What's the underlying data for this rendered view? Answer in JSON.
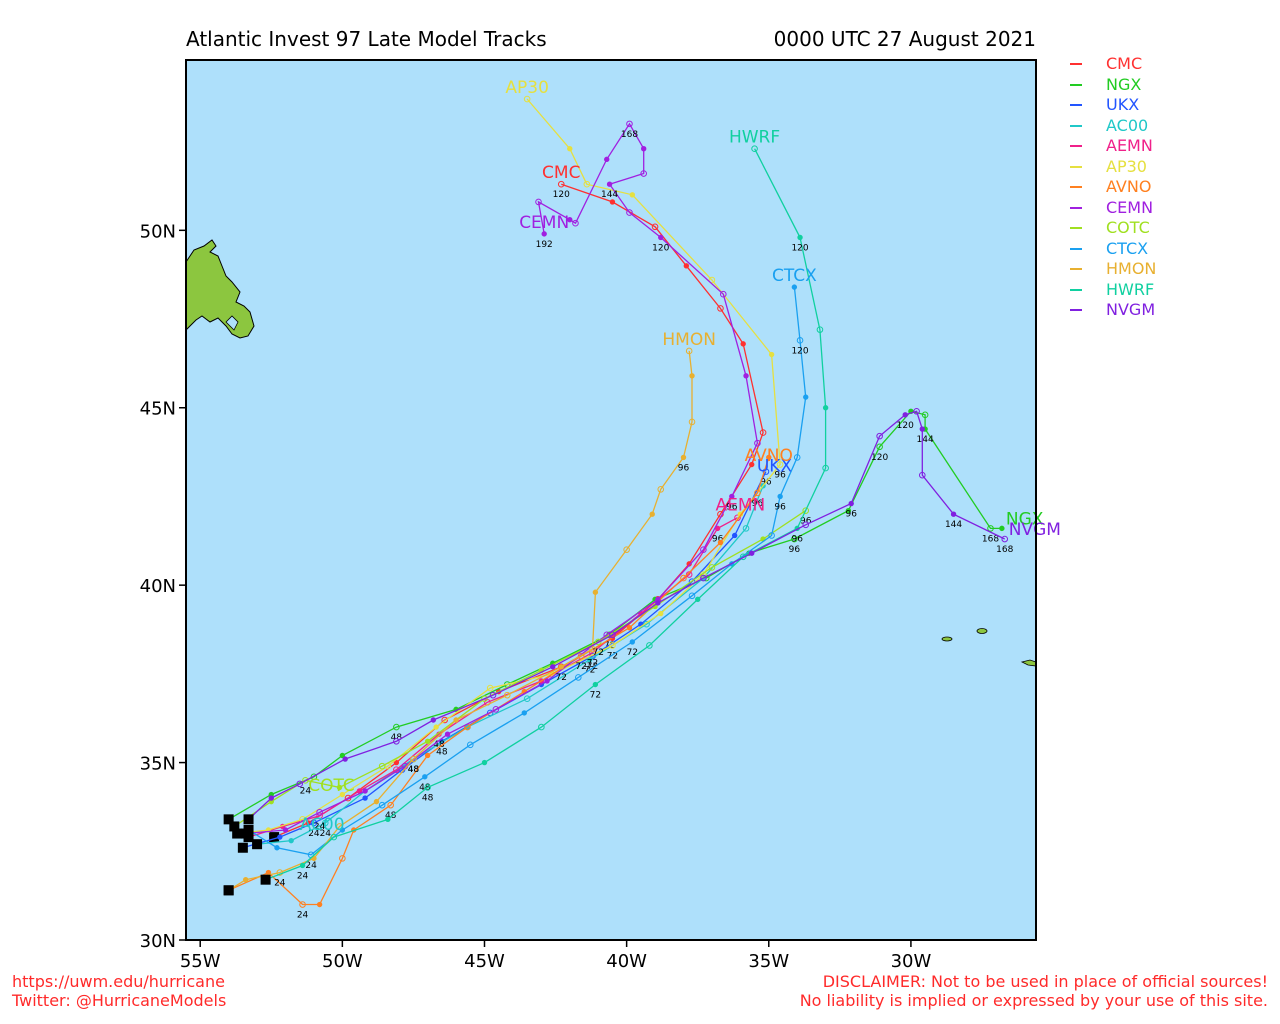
{
  "header": {
    "title": "Atlantic Invest 97 Late Model Tracks",
    "datetime": "0000 UTC 27 August 2021"
  },
  "colors": {
    "ocean": "#aee0fb",
    "land": "#8cc63f",
    "frame": "#000000"
  },
  "axes": {
    "x_ticks": [
      {
        "lon": -55,
        "label": "55W"
      },
      {
        "lon": -50,
        "label": "50W"
      },
      {
        "lon": -45,
        "label": "45W"
      },
      {
        "lon": -40,
        "label": "40W"
      },
      {
        "lon": -35,
        "label": "35W"
      },
      {
        "lon": -30,
        "label": "30W"
      }
    ],
    "y_ticks": [
      {
        "lat": 30,
        "label": "30N"
      },
      {
        "lat": 35,
        "label": "35N"
      },
      {
        "lat": 40,
        "label": "40N"
      },
      {
        "lat": 45,
        "label": "45N"
      },
      {
        "lat": 50,
        "label": "50N"
      }
    ],
    "lon_range": [
      -55.5,
      -25.6
    ],
    "lat_range": [
      30,
      54.8
    ]
  },
  "legend": [
    {
      "name": "CMC",
      "color": "#ff3030"
    },
    {
      "name": "NGX",
      "color": "#22cc22"
    },
    {
      "name": "UKX",
      "color": "#2255ff"
    },
    {
      "name": "AC00",
      "color": "#20c8c8"
    },
    {
      "name": "AEMN",
      "color": "#f0208a"
    },
    {
      "name": "AP30",
      "color": "#e6e040"
    },
    {
      "name": "AVNO",
      "color": "#ff8020"
    },
    {
      "name": "CEMN",
      "color": "#a020e0"
    },
    {
      "name": "COTC",
      "color": "#a0e020"
    },
    {
      "name": "CTCX",
      "color": "#1aa0f0"
    },
    {
      "name": "HMON",
      "color": "#e8b030"
    },
    {
      "name": "HWRF",
      "color": "#10d0a0"
    },
    {
      "name": "NVGM",
      "color": "#8020e0"
    }
  ],
  "tracks": [
    {
      "model": "CMC",
      "color": "#ff3030",
      "end_label": "CMC",
      "points": [
        [
          -52.4,
          32.9
        ],
        [
          -51.2,
          33.3
        ],
        [
          -49.8,
          34.0
        ],
        [
          -48.1,
          35.0
        ],
        [
          -46.4,
          36.2
        ],
        [
          -44.5,
          37.0
        ],
        [
          -42.3,
          37.7
        ],
        [
          -40.5,
          38.5
        ],
        [
          -38.9,
          39.6
        ],
        [
          -37.8,
          40.6
        ],
        [
          -36.7,
          42.0
        ],
        [
          -35.6,
          43.4
        ],
        [
          -35.2,
          44.3
        ],
        [
          -35.9,
          46.8
        ],
        [
          -36.7,
          47.8
        ],
        [
          -37.9,
          49.0
        ],
        [
          -39.0,
          50.1
        ],
        [
          -40.5,
          50.8
        ],
        [
          -42.3,
          51.3
        ]
      ],
      "hours": [
        {
          "i": 18,
          "h": "120"
        }
      ]
    },
    {
      "model": "NGX",
      "color": "#22cc22",
      "end_label": "NGX",
      "points": [
        [
          -54.0,
          33.4
        ],
        [
          -52.5,
          34.1
        ],
        [
          -51.0,
          34.6
        ],
        [
          -50.0,
          35.2
        ],
        [
          -48.1,
          36.0
        ],
        [
          -46.0,
          36.5
        ],
        [
          -44.2,
          37.2
        ],
        [
          -42.6,
          37.8
        ],
        [
          -40.6,
          38.6
        ],
        [
          -39.0,
          39.6
        ],
        [
          -37.2,
          40.2
        ],
        [
          -35.7,
          40.9
        ],
        [
          -34.1,
          41.3
        ],
        [
          -32.2,
          42.1
        ],
        [
          -31.1,
          43.9
        ],
        [
          -30.0,
          44.9
        ],
        [
          -29.5,
          44.8
        ],
        [
          -29.5,
          44.4
        ],
        [
          -27.2,
          41.6
        ],
        [
          -26.8,
          41.6
        ]
      ],
      "hours": [
        {
          "i": 4,
          "h": "48"
        },
        {
          "i": 8,
          "h": "72"
        },
        {
          "i": 12,
          "h": "96"
        },
        {
          "i": 14,
          "h": "120"
        },
        {
          "i": 17,
          "h": "144"
        },
        {
          "i": 18,
          "h": "168"
        }
      ]
    },
    {
      "model": "UKX",
      "color": "#2255ff",
      "end_label": "UKX",
      "points": [
        [
          -53.5,
          32.6
        ],
        [
          -52.2,
          32.9
        ],
        [
          -51.0,
          33.3
        ],
        [
          -49.2,
          34.0
        ],
        [
          -47.9,
          34.8
        ],
        [
          -46.5,
          35.6
        ],
        [
          -44.8,
          36.4
        ],
        [
          -43.0,
          37.2
        ],
        [
          -41.2,
          38.0
        ],
        [
          -39.5,
          38.9
        ],
        [
          -37.7,
          40.1
        ],
        [
          -36.2,
          41.4
        ],
        [
          -35.1,
          43.2
        ]
      ],
      "hours": [
        {
          "i": 2,
          "h": "24"
        },
        {
          "i": 5,
          "h": "48"
        },
        {
          "i": 8,
          "h": "72"
        },
        {
          "i": 12,
          "h": "96"
        }
      ]
    },
    {
      "model": "AC00",
      "color": "#20c8c8",
      "end_label": "AC00",
      "points": [
        [
          -53.0,
          32.7
        ],
        [
          -51.8,
          32.8
        ],
        [
          -50.6,
          33.3
        ],
        [
          -49.2,
          34.2
        ],
        [
          -47.5,
          35.1
        ],
        [
          -45.6,
          36.0
        ],
        [
          -43.5,
          36.8
        ],
        [
          -41.3,
          37.9
        ],
        [
          -39.3,
          38.9
        ],
        [
          -37.3,
          40.2
        ],
        [
          -35.8,
          41.6
        ],
        [
          -35.2,
          42.8
        ]
      ],
      "hours": [
        {
          "i": 2,
          "h": "24"
        },
        {
          "i": 4,
          "h": "48"
        },
        {
          "i": 7,
          "h": "72"
        }
      ]
    },
    {
      "model": "AEMN",
      "color": "#f0208a",
      "end_label": "AEMN",
      "points": [
        [
          -53.3,
          32.9
        ],
        [
          -52.1,
          33.2
        ],
        [
          -50.8,
          33.5
        ],
        [
          -49.4,
          34.2
        ],
        [
          -48.1,
          34.8
        ],
        [
          -46.6,
          35.8
        ],
        [
          -44.9,
          36.7
        ],
        [
          -43.0,
          37.3
        ],
        [
          -41.2,
          38.1
        ],
        [
          -39.5,
          39.2
        ],
        [
          -37.8,
          40.3
        ],
        [
          -36.8,
          41.6
        ],
        [
          -36.1,
          41.9
        ]
      ],
      "hours": [
        {
          "i": 2,
          "h": "24"
        },
        {
          "i": 5,
          "h": "48"
        },
        {
          "i": 8,
          "h": "72"
        },
        {
          "i": 11,
          "h": "96"
        }
      ]
    },
    {
      "model": "AP30",
      "color": "#e6e040",
      "end_label": "AP30",
      "points": [
        [
          -53.7,
          33.0
        ],
        [
          -52.6,
          33.1
        ],
        [
          -51.4,
          33.4
        ],
        [
          -50.0,
          34.1
        ],
        [
          -48.4,
          34.9
        ],
        [
          -46.7,
          36.0
        ],
        [
          -44.8,
          37.1
        ],
        [
          -42.6,
          37.5
        ],
        [
          -40.5,
          38.3
        ],
        [
          -38.8,
          39.2
        ],
        [
          -37.3,
          40.3
        ],
        [
          -36.0,
          42.0
        ],
        [
          -34.6,
          43.4
        ],
        [
          -34.9,
          46.5
        ],
        [
          -37.0,
          48.6
        ],
        [
          -39.8,
          51.0
        ],
        [
          -41.4,
          51.3
        ],
        [
          -42.0,
          52.3
        ],
        [
          -43.5,
          53.7
        ]
      ],
      "hours": [
        {
          "i": 8,
          "h": "72"
        },
        {
          "i": 12,
          "h": "96"
        }
      ]
    },
    {
      "model": "AVNO",
      "color": "#ff8020",
      "end_label": "AVNO",
      "points": [
        [
          -54.0,
          31.4
        ],
        [
          -52.6,
          31.9
        ],
        [
          -51.4,
          31.0
        ],
        [
          -50.8,
          31.0
        ],
        [
          -50.0,
          32.3
        ],
        [
          -49.6,
          33.1
        ],
        [
          -48.3,
          33.8
        ],
        [
          -47.0,
          35.2
        ],
        [
          -45.6,
          36.0
        ],
        [
          -43.6,
          37.0
        ],
        [
          -41.6,
          38.0
        ],
        [
          -39.9,
          38.8
        ],
        [
          -38.0,
          40.2
        ],
        [
          -36.7,
          41.2
        ],
        [
          -35.4,
          42.6
        ],
        [
          -35.0,
          43.6
        ]
      ],
      "hours": [
        {
          "i": 2,
          "h": "24"
        },
        {
          "i": 6,
          "h": "48"
        },
        {
          "i": 10,
          "h": "72"
        },
        {
          "i": 14,
          "h": "96"
        }
      ]
    },
    {
      "model": "CEMN",
      "color": "#a020e0",
      "end_label": "CEMN",
      "points": [
        [
          -53.4,
          33.0
        ],
        [
          -52.0,
          33.1
        ],
        [
          -50.8,
          33.6
        ],
        [
          -49.2,
          34.2
        ],
        [
          -47.8,
          34.9
        ],
        [
          -46.3,
          35.8
        ],
        [
          -44.6,
          36.5
        ],
        [
          -42.8,
          37.3
        ],
        [
          -40.7,
          38.6
        ],
        [
          -38.9,
          39.6
        ],
        [
          -37.3,
          41.0
        ],
        [
          -36.3,
          42.5
        ],
        [
          -35.4,
          44.0
        ],
        [
          -35.8,
          45.9
        ],
        [
          -36.6,
          48.2
        ],
        [
          -38.8,
          49.8
        ],
        [
          -39.9,
          50.5
        ],
        [
          -40.6,
          51.3
        ],
        [
          -39.4,
          51.6
        ],
        [
          -39.4,
          52.3
        ],
        [
          -39.9,
          53.0
        ],
        [
          -40.7,
          52.0
        ],
        [
          -41.8,
          50.2
        ],
        [
          -42.0,
          50.3
        ],
        [
          -43.1,
          50.8
        ],
        [
          -42.9,
          49.9
        ]
      ],
      "hours": [
        {
          "i": 11,
          "h": "96"
        },
        {
          "i": 15,
          "h": "120"
        },
        {
          "i": 17,
          "h": "144"
        },
        {
          "i": 20,
          "h": "168"
        },
        {
          "i": 25,
          "h": "192"
        }
      ]
    },
    {
      "model": "COTC",
      "color": "#a0e020",
      "end_label": "COTC",
      "points": [
        [
          -53.8,
          33.2
        ],
        [
          -52.5,
          33.9
        ],
        [
          -51.3,
          34.5
        ],
        [
          -50.1,
          34.3
        ],
        [
          -48.6,
          34.9
        ],
        [
          -47.0,
          35.6
        ],
        [
          -45.0,
          36.8
        ],
        [
          -43.0,
          37.6
        ],
        [
          -41.0,
          38.4
        ],
        [
          -39.0,
          39.4
        ],
        [
          -37.0,
          40.5
        ],
        [
          -35.2,
          41.3
        ],
        [
          -33.7,
          42.1
        ]
      ],
      "hours": [
        {
          "i": 2,
          "h": "24"
        },
        {
          "i": 8,
          "h": "72"
        },
        {
          "i": 12,
          "h": "96"
        }
      ]
    },
    {
      "model": "CTCX",
      "color": "#1aa0f0",
      "end_label": "CTCX",
      "points": [
        [
          -53.3,
          33.1
        ],
        [
          -52.3,
          32.6
        ],
        [
          -51.1,
          32.4
        ],
        [
          -50.0,
          33.1
        ],
        [
          -48.6,
          33.8
        ],
        [
          -47.1,
          34.6
        ],
        [
          -45.5,
          35.5
        ],
        [
          -43.6,
          36.4
        ],
        [
          -41.7,
          37.4
        ],
        [
          -39.8,
          38.4
        ],
        [
          -37.7,
          39.7
        ],
        [
          -36.3,
          40.6
        ],
        [
          -34.9,
          41.4
        ],
        [
          -34.6,
          42.5
        ],
        [
          -34.0,
          43.6
        ],
        [
          -33.7,
          45.3
        ],
        [
          -33.9,
          46.9
        ],
        [
          -34.1,
          48.4
        ]
      ],
      "hours": [
        {
          "i": 2,
          "h": "24"
        },
        {
          "i": 5,
          "h": "48"
        },
        {
          "i": 9,
          "h": "72"
        },
        {
          "i": 13,
          "h": "96"
        },
        {
          "i": 16,
          "h": "120"
        }
      ]
    },
    {
      "model": "HMON",
      "color": "#e8b030",
      "end_label": "HMON",
      "points": [
        [
          -54.0,
          31.4
        ],
        [
          -53.4,
          31.7
        ],
        [
          -52.2,
          31.9
        ],
        [
          -51.0,
          32.3
        ],
        [
          -50.1,
          33.2
        ],
        [
          -48.8,
          33.9
        ],
        [
          -47.5,
          35.1
        ],
        [
          -46.0,
          36.2
        ],
        [
          -44.2,
          36.9
        ],
        [
          -42.3,
          37.7
        ],
        [
          -41.2,
          38.2
        ],
        [
          -41.1,
          39.8
        ],
        [
          -40.0,
          41.0
        ],
        [
          -39.1,
          42.0
        ],
        [
          -38.8,
          42.7
        ],
        [
          -38.0,
          43.6
        ],
        [
          -37.7,
          44.6
        ],
        [
          -37.7,
          45.9
        ],
        [
          -37.8,
          46.6
        ]
      ],
      "hours": [
        {
          "i": 2,
          "h": "24"
        },
        {
          "i": 6,
          "h": "48"
        },
        {
          "i": 9,
          "h": "72"
        },
        {
          "i": 15,
          "h": "96"
        }
      ]
    },
    {
      "model": "HWRF",
      "color": "#10d0a0",
      "end_label": "HWRF",
      "points": [
        [
          -52.7,
          31.7
        ],
        [
          -51.4,
          32.1
        ],
        [
          -50.3,
          32.9
        ],
        [
          -48.4,
          33.4
        ],
        [
          -47.0,
          34.3
        ],
        [
          -45.0,
          35.0
        ],
        [
          -43.0,
          36.0
        ],
        [
          -41.1,
          37.2
        ],
        [
          -39.2,
          38.3
        ],
        [
          -37.5,
          39.6
        ],
        [
          -35.9,
          40.8
        ],
        [
          -34.0,
          41.6
        ],
        [
          -33.0,
          43.3
        ],
        [
          -33.0,
          45.0
        ],
        [
          -33.2,
          47.2
        ],
        [
          -33.9,
          49.8
        ],
        [
          -35.5,
          52.3
        ]
      ],
      "hours": [
        {
          "i": 1,
          "h": "24"
        },
        {
          "i": 4,
          "h": "48"
        },
        {
          "i": 7,
          "h": "72"
        },
        {
          "i": 11,
          "h": "96"
        },
        {
          "i": 15,
          "h": "120"
        }
      ]
    },
    {
      "model": "NVGM",
      "color": "#8020e0",
      "end_label": "NVGM",
      "points": [
        [
          -53.3,
          33.4
        ],
        [
          -52.5,
          34.0
        ],
        [
          -51.5,
          34.4
        ],
        [
          -49.9,
          35.1
        ],
        [
          -48.1,
          35.6
        ],
        [
          -46.8,
          36.2
        ],
        [
          -44.7,
          36.9
        ],
        [
          -42.6,
          37.7
        ],
        [
          -40.5,
          38.6
        ],
        [
          -38.9,
          39.5
        ],
        [
          -37.3,
          40.2
        ],
        [
          -35.6,
          40.9
        ],
        [
          -33.7,
          41.7
        ],
        [
          -32.1,
          42.3
        ],
        [
          -31.1,
          44.2
        ],
        [
          -30.2,
          44.8
        ],
        [
          -29.8,
          44.9
        ],
        [
          -29.6,
          44.4
        ],
        [
          -29.6,
          43.1
        ],
        [
          -28.5,
          42.0
        ],
        [
          -26.7,
          41.3
        ]
      ],
      "hours": [
        {
          "i": 13,
          "h": "96"
        },
        {
          "i": 15,
          "h": "120"
        },
        {
          "i": 19,
          "h": "144"
        },
        {
          "i": 20,
          "h": "168"
        }
      ]
    }
  ],
  "end_labels": [
    {
      "text": "AP30",
      "color": "#e6e040"
    },
    {
      "text": "HWRF",
      "color": "#10d0a0"
    },
    {
      "text": "CMC",
      "color": "#ff3030"
    },
    {
      "text": "CEMN",
      "color": "#a020e0"
    },
    {
      "text": "CTCX",
      "color": "#1aa0f0"
    },
    {
      "text": "HMON",
      "color": "#e8b030"
    },
    {
      "text": "AVNO",
      "color": "#ff8020"
    },
    {
      "text": "UKX",
      "color": "#2255ff"
    },
    {
      "text": "AEMN",
      "color": "#f0208a"
    },
    {
      "text": "NGX",
      "color": "#22cc22"
    },
    {
      "text": "NVGM",
      "color": "#8020e0"
    },
    {
      "text": "COTC",
      "color": "#a0e020"
    },
    {
      "text": "AC00",
      "color": "#20c8c8"
    }
  ],
  "footer": {
    "url": "https://uwm.edu/hurricane",
    "twitter": "Twitter: @HurricaneModels",
    "disclaimer1": "DISCLAIMER: Not to be used in place of official sources!",
    "disclaimer2": "No liability is implied or expressed by your use of this site."
  }
}
